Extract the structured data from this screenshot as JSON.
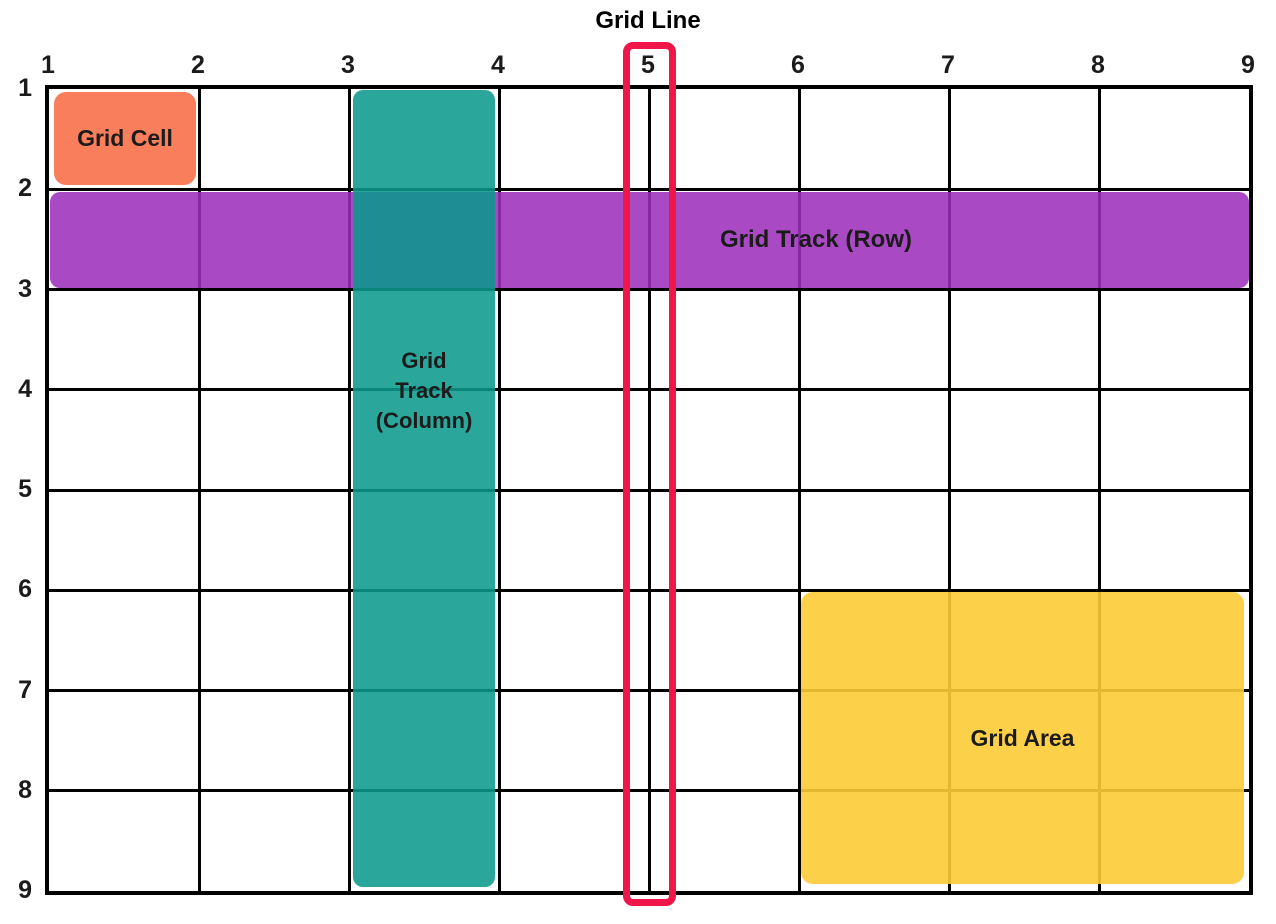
{
  "title": "Grid Line",
  "axis": {
    "top_numbers": [
      "1",
      "2",
      "3",
      "4",
      "5",
      "6",
      "7",
      "8",
      "9"
    ],
    "left_numbers": [
      "1",
      "2",
      "3",
      "4",
      "5",
      "6",
      "7",
      "8",
      "9"
    ]
  },
  "labels": {
    "cell": "Grid Cell",
    "row_track": "Grid Track (Row)",
    "col_track_lines": [
      "Grid",
      "Track",
      "(Column)"
    ],
    "area": "Grid Area"
  },
  "colors": {
    "cell": "#F97E5B",
    "row_track": "#A94AC4",
    "col_track": "#2AA69B",
    "area": "#FDD04A",
    "grid_line_marker": "#F0164A",
    "grid_lines": "#000000",
    "text": "#1B1B1B"
  }
}
